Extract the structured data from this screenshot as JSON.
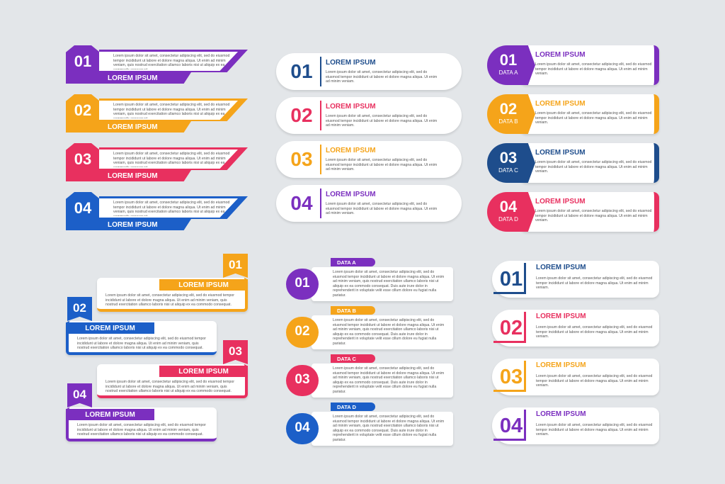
{
  "panels": [
    {
      "style": "banner",
      "items": [
        {
          "number": "01",
          "title": "LOREM IPSUM",
          "color": "#7b2fbf",
          "text": "Lorem ipsum dolor sit amet, consectetur adipiscing elit, sed do eiusmod tempor incididunt ut labore et dolore magna aliqua. Ut enim ad minim veniam, quis nostrud exercitation ullamco laboris nisi ut aliquip ex ea commodo consequat."
        },
        {
          "number": "02",
          "title": "LOREM IPSUM",
          "color": "#f5a41a",
          "text": "Lorem ipsum dolor sit amet, consectetur adipiscing elit, sed do eiusmod tempor incididunt ut labore et dolore magna aliqua. Ut enim ad minim veniam, quis nostrud exercitation ullamco laboris nisi ut aliquip ex ea commodo consequat."
        },
        {
          "number": "03",
          "title": "LOREM IPSUM",
          "color": "#e8305f",
          "text": "Lorem ipsum dolor sit amet, consectetur adipiscing elit, sed do eiusmod tempor incididunt ut labore et dolore magna aliqua. Ut enim ad minim veniam, quis nostrud exercitation ullamco laboris nisi ut aliquip ex ea commodo consequat."
        },
        {
          "number": "04",
          "title": "LOREM IPSUM",
          "color": "#1c5fc8",
          "text": "Lorem ipsum dolor sit amet, consectetur adipiscing elit, sed do eiusmod tempor incididunt ut labore et dolore magna aliqua. Ut enim ad minim veniam, quis nostrud exercitation ullamco laboris nisi ut aliquip ex ea commodo consequat."
        }
      ]
    },
    {
      "style": "pill",
      "items": [
        {
          "number": "01",
          "title": "LOREM IPSUM",
          "color": "#1e4d8c",
          "text": "Lorem ipsum dolor sit amet, consectetur adipiscing elit, sed do eiusmod tempor incididunt ut labore et dolore magna aliqua. Ut enim ad minim veniam."
        },
        {
          "number": "02",
          "title": "LOREM IPSUM",
          "color": "#e8305f",
          "text": "Lorem ipsum dolor sit amet, consectetur adipiscing elit, sed do eiusmod tempor incididunt ut labore et dolore magna aliqua. Ut enim ad minim veniam."
        },
        {
          "number": "03",
          "title": "LOREM IPSUM",
          "color": "#f5a41a",
          "text": "Lorem ipsum dolor sit amet, consectetur adipiscing elit, sed do eiusmod tempor incididunt ut labore et dolore magna aliqua. Ut enim ad minim veniam."
        },
        {
          "number": "04",
          "title": "LOREM IPSUM",
          "color": "#7b2fbf",
          "text": "Lorem ipsum dolor sit amet, consectetur adipiscing elit, sed do eiusmod tempor incididunt ut labore et dolore magna aliqua. Ut enim ad minim veniam."
        }
      ]
    },
    {
      "style": "tab",
      "items": [
        {
          "number": "01",
          "tag": "DATA A",
          "title": "LOREM IPSUM",
          "color": "#7b2fbf",
          "text": "Lorem ipsum dolor sit amet, consectetur adipiscing elit, sed do eiusmod tempor incididunt ut labore et dolore magna aliqua. Ut enim ad minim veniam."
        },
        {
          "number": "02",
          "tag": "DATA B",
          "title": "LOREM IPSUM",
          "color": "#f5a41a",
          "text": "Lorem ipsum dolor sit amet, consectetur adipiscing elit, sed do eiusmod tempor incididunt ut labore et dolore magna aliqua. Ut enim ad minim veniam."
        },
        {
          "number": "03",
          "tag": "DATA C",
          "title": "LOREM IPSUM",
          "color": "#1e4d8c",
          "text": "Lorem ipsum dolor sit amet, consectetur adipiscing elit, sed do eiusmod tempor incididunt ut labore et dolore magna aliqua. Ut enim ad minim veniam."
        },
        {
          "number": "04",
          "tag": "DATA D",
          "title": "LOREM IPSUM",
          "color": "#e8305f",
          "text": "Lorem ipsum dolor sit amet, consectetur adipiscing elit, sed do eiusmod tempor incididunt ut labore et dolore magna aliqua. Ut enim ad minim veniam."
        }
      ]
    },
    {
      "style": "ribbon",
      "items": [
        {
          "number": "01",
          "title": "LOREM IPSUM",
          "color": "#f5a41a",
          "text": "Lorem ipsum dolor sit amet, consectetur adipiscing elit, sed do eiusmod tempor incididunt ut labore et dolore magna aliqua. Ut enim ad minim veniam, quis nostrud exercitation ullamco laboris nisi ut aliquip ex ea commodo consequat."
        },
        {
          "number": "02",
          "title": "LOREM IPSUM",
          "color": "#1c5fc8",
          "text": "Lorem ipsum dolor sit amet, consectetur adipiscing elit, sed do eiusmod tempor incididunt ut labore et dolore magna aliqua. Ut enim ad minim veniam, quis nostrud exercitation ullamco laboris nisi ut aliquip ex ea commodo consequat."
        },
        {
          "number": "03",
          "title": "LOREM IPSUM",
          "color": "#e8305f",
          "text": "Lorem ipsum dolor sit amet, consectetur adipiscing elit, sed do eiusmod tempor incididunt ut labore et dolore magna aliqua. Ut enim ad minim veniam, quis nostrud exercitation ullamco laboris nisi ut aliquip ex ea commodo consequat."
        },
        {
          "number": "04",
          "title": "LOREM IPSUM",
          "color": "#7b2fbf",
          "text": "Lorem ipsum dolor sit amet, consectetur adipiscing elit, sed do eiusmod tempor incididunt ut labore et dolore magna aliqua. Ut enim ad minim veniam, quis nostrud exercitation ullamco laboris nisi ut aliquip ex ea commodo consequat."
        }
      ]
    },
    {
      "style": "circle",
      "items": [
        {
          "number": "01",
          "tag": "DATA A",
          "color": "#7b2fbf",
          "text": "Lorem ipsum dolor sit amet, consectetur adipiscing elit, sed do eiusmod tempor incididunt ut labore et dolore magna aliqua. Ut enim ad minim veniam, quis nostrud exercitation ullamco laboris nisi ut aliquip ex ea commodo consequat. Duis aute irure dolor in reprehenderit in voluptate velit esse cillum dolore eu fugiat nulla pariatur."
        },
        {
          "number": "02",
          "tag": "DATA B",
          "color": "#f5a41a",
          "text": "Lorem ipsum dolor sit amet, consectetur adipiscing elit, sed do eiusmod tempor incididunt ut labore et dolore magna aliqua. Ut enim ad minim veniam, quis nostrud exercitation ullamco laboris nisi ut aliquip ex ea commodo consequat. Duis aute irure dolor in reprehenderit in voluptate velit esse cillum dolore eu fugiat nulla pariatur."
        },
        {
          "number": "03",
          "tag": "DATA C",
          "color": "#e8305f",
          "text": "Lorem ipsum dolor sit amet, consectetur adipiscing elit, sed do eiusmod tempor incididunt ut labore et dolore magna aliqua. Ut enim ad minim veniam, quis nostrud exercitation ullamco laboris nisi ut aliquip ex ea commodo consequat. Duis aute irure dolor in reprehenderit in voluptate velit esse cillum dolore eu fugiat nulla pariatur."
        },
        {
          "number": "04",
          "tag": "DATA D",
          "color": "#1c5fc8",
          "text": "Lorem ipsum dolor sit amet, consectetur adipiscing elit, sed do eiusmod tempor incididunt ut labore et dolore magna aliqua. Ut enim ad minim veniam, quis nostrud exercitation ullamco laboris nisi ut aliquip ex ea commodo consequat. Duis aute irure dolor in reprehenderit in voluptate velit esse cillum dolore eu fugiat nulla pariatur."
        }
      ]
    },
    {
      "style": "corner",
      "items": [
        {
          "number": "01",
          "title": "LOREM IPSUM",
          "color": "#1e4d8c",
          "text": "Lorem ipsum dolor sit amet, consectetur adipiscing elit, sed do eiusmod tempor incididunt ut labore et dolore magna aliqua. Ut enim ad minim veniam."
        },
        {
          "number": "02",
          "title": "LOREM IPSUM",
          "color": "#e8305f",
          "text": "Lorem ipsum dolor sit amet, consectetur adipiscing elit, sed do eiusmod tempor incididunt ut labore et dolore magna aliqua. Ut enim ad minim veniam."
        },
        {
          "number": "03",
          "title": "LOREM IPSUM",
          "color": "#f5a41a",
          "text": "Lorem ipsum dolor sit amet, consectetur adipiscing elit, sed do eiusmod tempor incididunt ut labore et dolore magna aliqua. Ut enim ad minim veniam."
        },
        {
          "number": "04",
          "title": "LOREM IPSUM",
          "color": "#7b2fbf",
          "text": "Lorem ipsum dolor sit amet, consectetur adipiscing elit, sed do eiusmod tempor incididunt ut labore et dolore magna aliqua. Ut enim ad minim veniam."
        }
      ]
    }
  ]
}
